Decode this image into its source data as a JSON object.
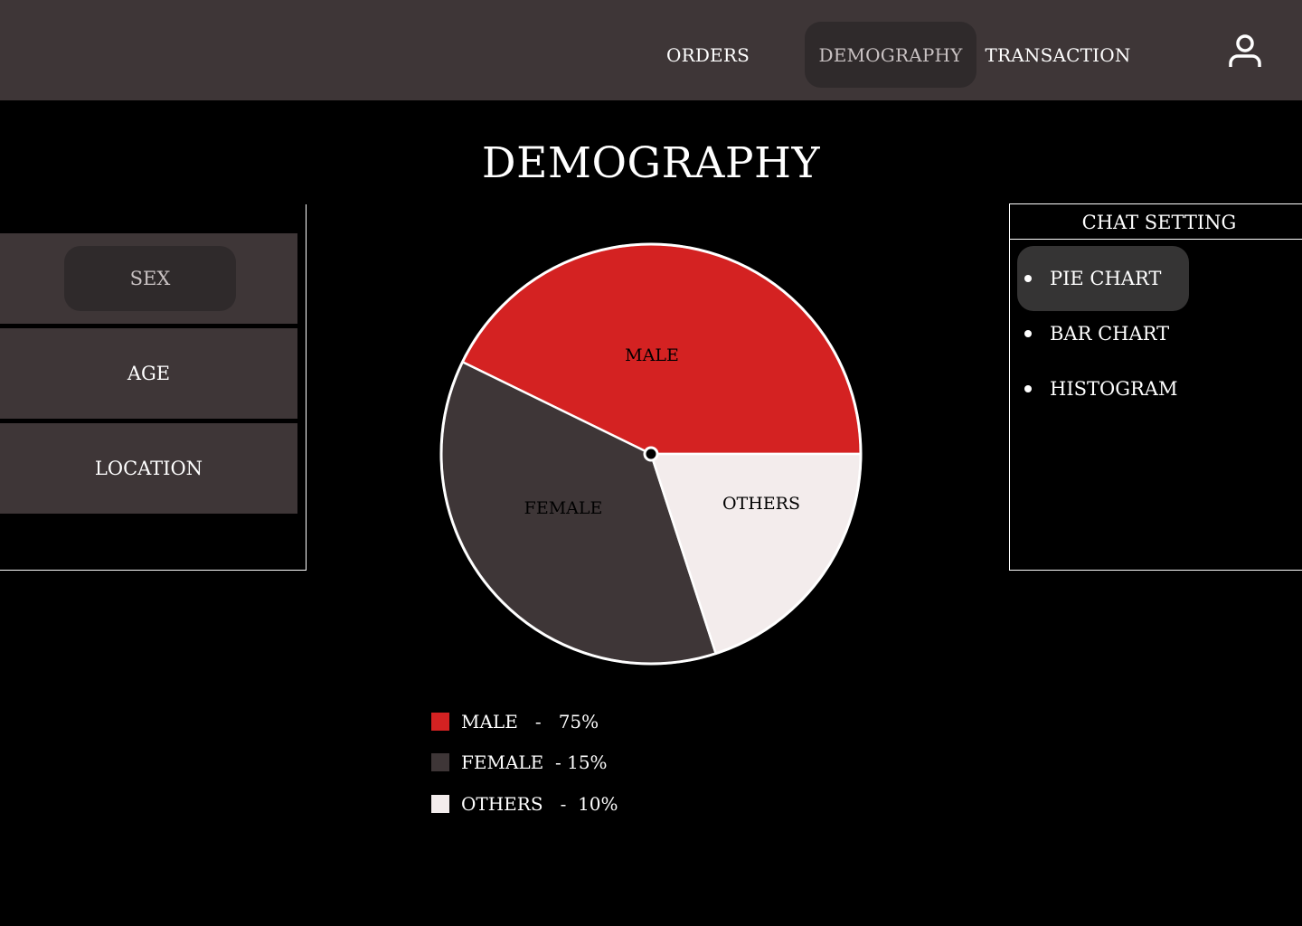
{
  "nav": {
    "orders": "ORDERS",
    "demography": "DEMOGRAPHY",
    "transaction": "TRANSACTION",
    "user_icon": "user-icon"
  },
  "page_title": "DEMOGRAPHY",
  "left_menu": {
    "sex": "SEX",
    "age": "AGE",
    "location": "LOCATION"
  },
  "chart_setting": {
    "title": "CHAT SETTING",
    "options": [
      "PIE CHART",
      "BAR CHART",
      "HISTOGRAM"
    ],
    "selected": "PIE CHART"
  },
  "legend": [
    {
      "name": "MALE",
      "text": "MALE   -   75%"
    },
    {
      "name": "FEMALE",
      "text": "FEMALE  - 15%"
    },
    {
      "name": "OTHERS",
      "text": "OTHERS   -  10%"
    }
  ],
  "colors": {
    "male": "#d42222",
    "female": "#3e3637",
    "others": "#f3ecec",
    "topbar": "#3e3637"
  },
  "chart_data": {
    "type": "pie",
    "title": "",
    "categories": [
      "MALE",
      "FEMALE",
      "OTHERS"
    ],
    "values": [
      75,
      15,
      10
    ],
    "slice_labels": [
      "MALE",
      "FEMALE",
      "OTHERS"
    ],
    "legend_position": "bottom"
  }
}
